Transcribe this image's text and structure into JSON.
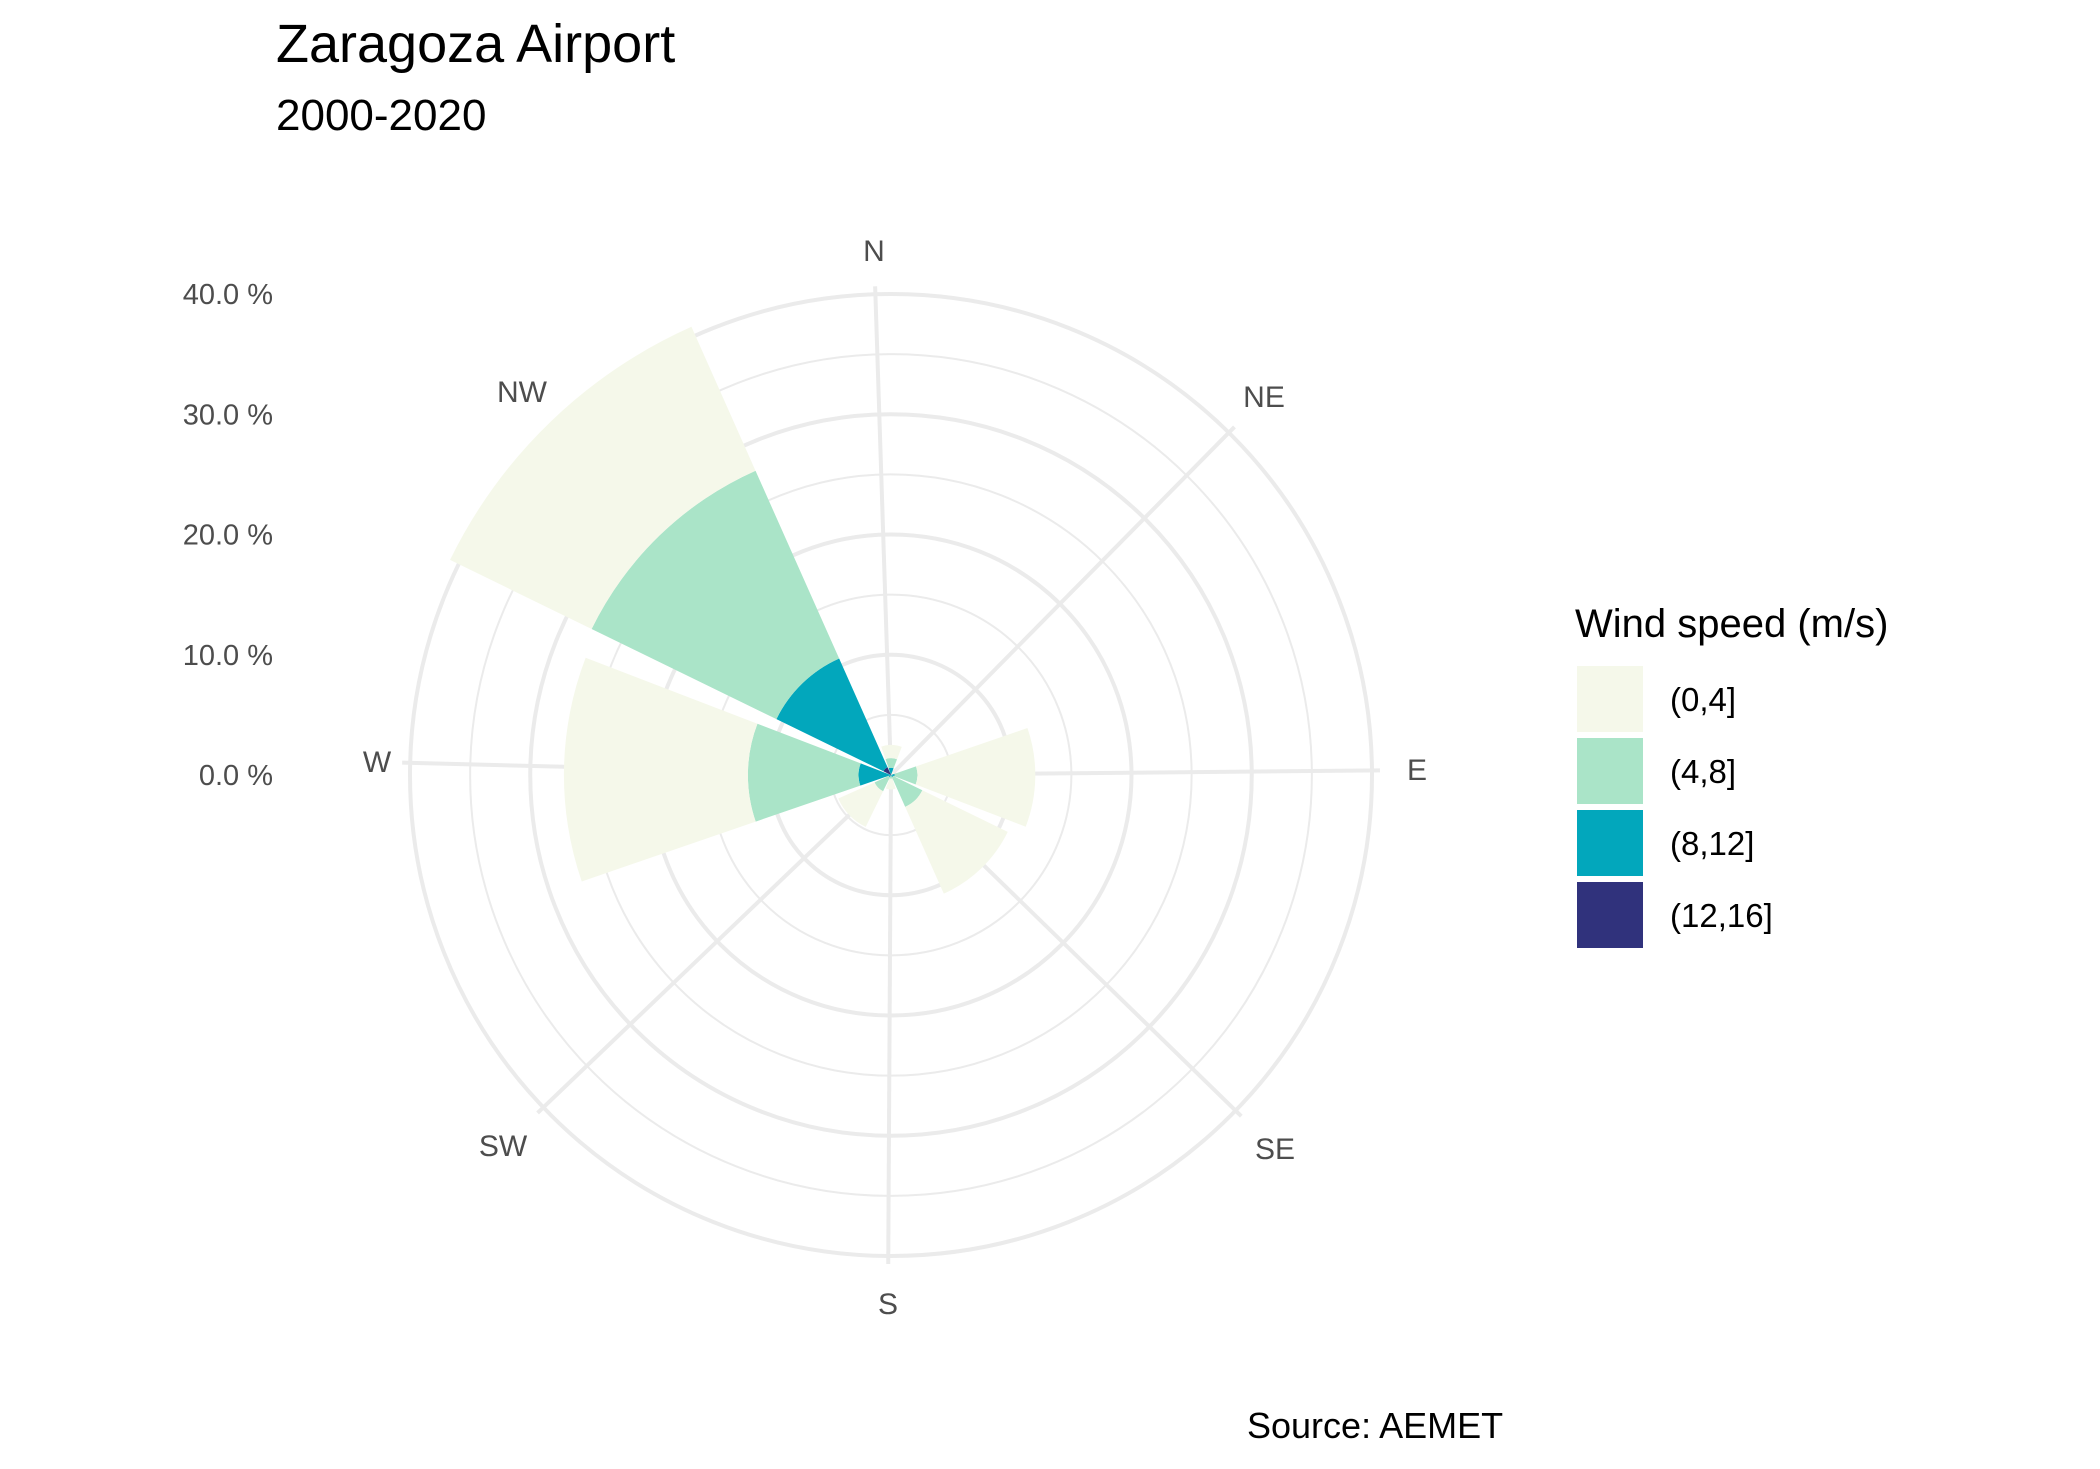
{
  "chart_data": {
    "type": "bar",
    "coord": "polar",
    "stacked": true,
    "title": "Zaragoza Airport",
    "subtitle": "2000-2020",
    "caption": "Source: AEMET",
    "categories": [
      "N",
      "NE",
      "E",
      "SE",
      "S",
      "SW",
      "W",
      "NW"
    ],
    "y_ticks": [
      "0.0 %",
      "10.0 %",
      "20.0 %",
      "30.0 %",
      "40.0 %"
    ],
    "ylim": [
      0,
      40
    ],
    "unit": "%",
    "grid": true,
    "legend": {
      "title": "Wind speed (m/s)",
      "position": "right"
    },
    "series": [
      {
        "name": "(0,4]",
        "color": "#f5f8ea",
        "values": [
          1.1,
          0.3,
          9.8,
          7.9,
          0.9,
          3.3,
          15.3,
          13.1
        ]
      },
      {
        "name": "(4,8]",
        "color": "#aae4c8",
        "values": [
          0.8,
          0.0,
          1.9,
          2.7,
          0.3,
          1.3,
          9.2,
          17.1
        ]
      },
      {
        "name": "(8,12]",
        "color": "#02a7bc",
        "values": [
          0.6,
          0.0,
          0.3,
          0.2,
          0.0,
          0.2,
          2.6,
          9.9
        ]
      },
      {
        "name": "(12,16]",
        "color": "#30327c",
        "values": [
          0.0,
          0.0,
          0.0,
          0.0,
          0.0,
          0.0,
          0.1,
          0.7
        ]
      }
    ]
  }
}
